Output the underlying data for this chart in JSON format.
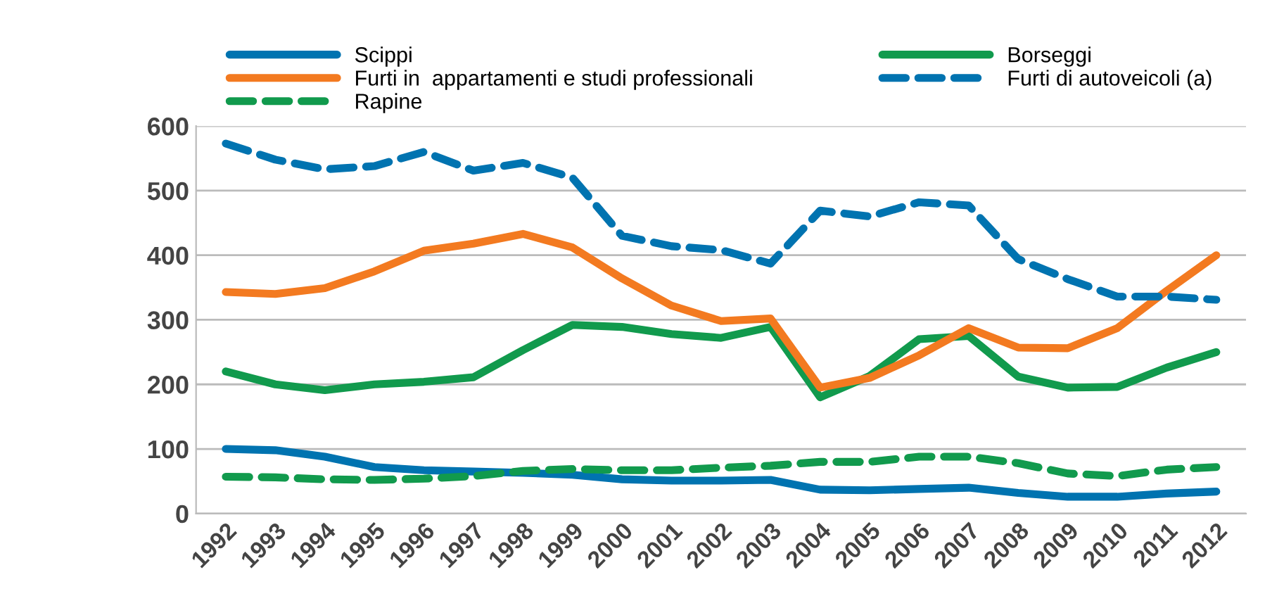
{
  "chart_data": {
    "type": "line",
    "categories": [
      "1992",
      "1993",
      "1994",
      "1995",
      "1996",
      "1997",
      "1998",
      "1999",
      "2000",
      "2001",
      "2002",
      "2003",
      "2004",
      "2005",
      "2006",
      "2007",
      "2008",
      "2009",
      "2010",
      "2011",
      "2012"
    ],
    "series": [
      {
        "name": "Scippi",
        "color": "#0073b0",
        "line_style": "solid",
        "values": [
          100,
          98,
          88,
          72,
          67,
          65,
          63,
          60,
          53,
          51,
          51,
          52,
          37,
          36,
          38,
          40,
          32,
          26,
          26,
          31,
          34
        ]
      },
      {
        "name": "Borseggi",
        "color": "#119a4d",
        "line_style": "solid",
        "values": [
          220,
          200,
          191,
          200,
          204,
          211,
          253,
          292,
          289,
          278,
          272,
          289,
          180,
          213,
          270,
          275,
          212,
          195,
          196,
          226,
          250
        ]
      },
      {
        "name": "Furti in  appartamenti e studi professionali",
        "color": "#f37a20",
        "line_style": "solid",
        "values": [
          343,
          340,
          349,
          375,
          407,
          418,
          433,
          412,
          364,
          322,
          298,
          302,
          195,
          210,
          245,
          287,
          257,
          256,
          287,
          345,
          400
        ]
      },
      {
        "name": "Furti di autoveicoli (a)",
        "color": "#0073b0",
        "line_style": "dashed",
        "values": [
          573,
          548,
          533,
          538,
          560,
          531,
          543,
          520,
          430,
          414,
          408,
          387,
          469,
          460,
          482,
          477,
          394,
          363,
          336,
          336,
          331
        ]
      },
      {
        "name": "Rapine",
        "color": "#119a4d",
        "line_style": "dashed",
        "values": [
          57,
          56,
          53,
          52,
          54,
          58,
          66,
          69,
          67,
          67,
          71,
          74,
          80,
          80,
          88,
          88,
          78,
          62,
          58,
          68,
          72
        ]
      }
    ],
    "ylim": [
      0,
      600
    ],
    "yticks": [
      0,
      100,
      200,
      300,
      400,
      500,
      600
    ],
    "grid": "y",
    "legend": "top",
    "marker": "none"
  }
}
